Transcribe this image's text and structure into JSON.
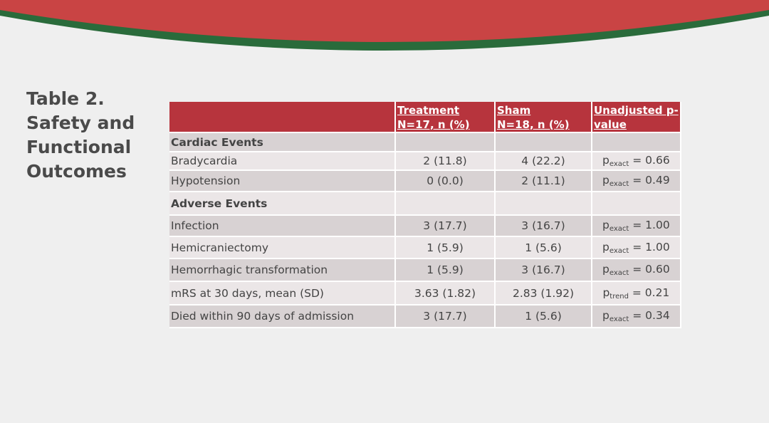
{
  "title_lines": [
    "Table 2.",
    "Safety and",
    "Functional",
    "Outcomes"
  ],
  "colors": {
    "banner_red": "#c94444",
    "banner_green": "#2a6b3b",
    "header_red": "#b7343d"
  },
  "table": {
    "headers": [
      {
        "line1": "",
        "line2": ""
      },
      {
        "line1": "Treatment",
        "line2": "N=17, n (%)"
      },
      {
        "line1": "Sham",
        "line2": "N=18, n (%)"
      },
      {
        "line1": "Unadjusted p-",
        "line2": "value"
      }
    ],
    "rows": [
      {
        "label": "Cardiac Events",
        "section": true,
        "treatment": "",
        "sham": "",
        "p": "",
        "p_sub": "",
        "p_val": ""
      },
      {
        "label": "Bradycardia",
        "section": false,
        "treatment": "2 (11.8)",
        "sham": "4 (22.2)",
        "p": "p",
        "p_sub": "exact",
        "p_val": " = 0.66"
      },
      {
        "label": "Hypotension",
        "section": false,
        "treatment": "0 (0.0)",
        "sham": "2 (11.1)",
        "p": "p",
        "p_sub": "exact",
        "p_val": " = 0.49"
      },
      {
        "label": "Adverse Events",
        "section": true,
        "treatment": "",
        "sham": "",
        "p": "",
        "p_sub": "",
        "p_val": ""
      },
      {
        "label": "Infection",
        "section": false,
        "treatment": "3 (17.7)",
        "sham": "3 (16.7)",
        "p": "p",
        "p_sub": "exact",
        "p_val": " = 1.00"
      },
      {
        "label": "Hemicraniectomy",
        "section": false,
        "treatment": "1 (5.9)",
        "sham": "1 (5.6)",
        "p": "p",
        "p_sub": "exact",
        "p_val": " = 1.00"
      },
      {
        "label": "Hemorrhagic transformation",
        "section": false,
        "treatment": "1 (5.9)",
        "sham": "3 (16.7)",
        "p": "p",
        "p_sub": "exact",
        "p_val": " = 0.60"
      },
      {
        "label": "mRS at 30 days, mean (SD)",
        "section": false,
        "treatment": "3.63 (1.82)",
        "sham": "2.83 (1.92)",
        "p": "p",
        "p_sub": "trend",
        "p_val": " = 0.21"
      },
      {
        "label": "Died within 90 days of admission",
        "section": false,
        "treatment": "3 (17.7)",
        "sham": "1 (5.6)",
        "p": "p",
        "p_sub": "exact",
        "p_val": " = 0.34"
      }
    ]
  }
}
